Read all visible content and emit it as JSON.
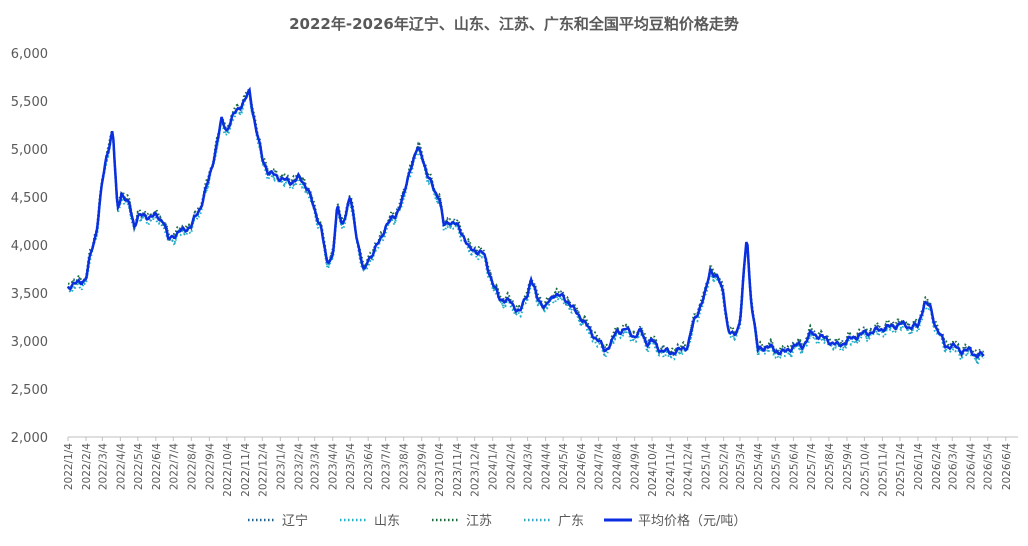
{
  "chart_data": {
    "type": "line",
    "title": "2022年-2026年辽宁、山东、江苏、广东和全国平均豆粕价格走势",
    "xlabel": "",
    "ylabel": "",
    "ylim": [
      2000,
      6000
    ],
    "y_ticks": [
      2000,
      2500,
      3000,
      3500,
      4000,
      4500,
      5000,
      5500,
      6000
    ],
    "y_tick_labels": [
      "2,000",
      "2,500",
      "3,000",
      "3,500",
      "4,000",
      "4,500",
      "5,000",
      "5,500",
      "6,000"
    ],
    "x_tick_labels": [
      "2022/1/4",
      "2022/2/4",
      "2022/3/4",
      "2022/4/4",
      "2022/5/4",
      "2022/6/4",
      "2022/7/4",
      "2022/8/4",
      "2022/9/4",
      "2022/10/4",
      "2022/11/4",
      "2022/12/4",
      "2023/1/4",
      "2023/2/4",
      "2023/3/4",
      "2023/4/4",
      "2023/5/4",
      "2023/6/4",
      "2023/7/4",
      "2023/8/4",
      "2023/9/4",
      "2023/10/4",
      "2023/11/4",
      "2023/12/4",
      "2024/1/4",
      "2024/2/4",
      "2024/3/4",
      "2024/4/4",
      "2024/5/4",
      "2024/6/4",
      "2024/7/4",
      "2024/8/4",
      "2024/9/4",
      "2024/10/4",
      "2024/11/4",
      "2024/12/4",
      "2025/1/4",
      "2025/2/4",
      "2025/3/4",
      "2025/4/4",
      "2025/5/4",
      "2025/6/4",
      "2025/7/4",
      "2025/8/4",
      "2025/9/4",
      "2025/10/4",
      "2025/11/4",
      "2025/12/4",
      "2026/1/4",
      "2026/2/4",
      "2026/3/4",
      "2026/4/4",
      "2026/5/4",
      "2026/6/4"
    ],
    "grid": false,
    "legend_position": "bottom",
    "series": [
      {
        "name": "辽宁",
        "color": "#1f5f8b",
        "style": "dotted",
        "offset": 10
      },
      {
        "name": "山东",
        "color": "#1ab0c8",
        "style": "dotted",
        "offset": -35
      },
      {
        "name": "江苏",
        "color": "#1a6b3c",
        "style": "dotted",
        "offset": 25
      },
      {
        "name": "广东",
        "color": "#2aa3c2",
        "style": "dotted",
        "offset": -20
      },
      {
        "name": "平均价格（元/吨）",
        "color": "#0a2ee0",
        "style": "solid",
        "offset": 0
      }
    ],
    "average_anchors": [
      [
        "2022-01-04",
        3570
      ],
      [
        "2022-01-20",
        3600
      ],
      [
        "2022-02-04",
        3650
      ],
      [
        "2022-02-12",
        3900
      ],
      [
        "2022-02-22",
        4150
      ],
      [
        "2022-03-04",
        4650
      ],
      [
        "2022-03-12",
        4950
      ],
      [
        "2022-03-22",
        5200
      ],
      [
        "2022-03-30",
        4350
      ],
      [
        "2022-04-06",
        4550
      ],
      [
        "2022-04-20",
        4400
      ],
      [
        "2022-04-28",
        4200
      ],
      [
        "2022-05-04",
        4300
      ],
      [
        "2022-05-20",
        4300
      ],
      [
        "2022-06-04",
        4300
      ],
      [
        "2022-06-18",
        4250
      ],
      [
        "2022-06-25",
        4050
      ],
      [
        "2022-07-04",
        4100
      ],
      [
        "2022-07-20",
        4150
      ],
      [
        "2022-08-04",
        4200
      ],
      [
        "2022-08-20",
        4400
      ],
      [
        "2022-09-04",
        4700
      ],
      [
        "2022-09-15",
        5000
      ],
      [
        "2022-09-25",
        5300
      ],
      [
        "2022-10-04",
        5200
      ],
      [
        "2022-10-20",
        5400
      ],
      [
        "2022-11-04",
        5500
      ],
      [
        "2022-11-12",
        5600
      ],
      [
        "2022-11-22",
        5250
      ],
      [
        "2022-12-04",
        4900
      ],
      [
        "2022-12-15",
        4750
      ],
      [
        "2023-01-04",
        4700
      ],
      [
        "2023-01-20",
        4650
      ],
      [
        "2023-02-04",
        4700
      ],
      [
        "2023-02-20",
        4600
      ],
      [
        "2023-03-04",
        4350
      ],
      [
        "2023-03-15",
        4200
      ],
      [
        "2023-03-25",
        3800
      ],
      [
        "2023-04-04",
        3900
      ],
      [
        "2023-04-12",
        4400
      ],
      [
        "2023-04-20",
        4200
      ],
      [
        "2023-05-04",
        4500
      ],
      [
        "2023-05-12",
        4200
      ],
      [
        "2023-05-20",
        3950
      ],
      [
        "2023-05-28",
        3700
      ],
      [
        "2023-06-04",
        3850
      ],
      [
        "2023-06-15",
        3950
      ],
      [
        "2023-06-25",
        4050
      ],
      [
        "2023-07-04",
        4200
      ],
      [
        "2023-07-20",
        4300
      ],
      [
        "2023-08-04",
        4500
      ],
      [
        "2023-08-15",
        4800
      ],
      [
        "2023-08-28",
        5000
      ],
      [
        "2023-09-04",
        4950
      ],
      [
        "2023-09-15",
        4700
      ],
      [
        "2023-09-28",
        4550
      ],
      [
        "2023-10-04",
        4500
      ],
      [
        "2023-10-12",
        4200
      ],
      [
        "2023-10-22",
        4250
      ],
      [
        "2023-11-04",
        4200
      ],
      [
        "2023-11-15",
        4100
      ],
      [
        "2023-11-25",
        3950
      ],
      [
        "2023-12-04",
        3950
      ],
      [
        "2023-12-20",
        3900
      ],
      [
        "2024-01-04",
        3600
      ],
      [
        "2024-01-15",
        3450
      ],
      [
        "2024-02-04",
        3400
      ],
      [
        "2024-02-20",
        3300
      ],
      [
        "2024-03-04",
        3500
      ],
      [
        "2024-03-10",
        3650
      ],
      [
        "2024-03-20",
        3450
      ],
      [
        "2024-04-04",
        3350
      ],
      [
        "2024-04-20",
        3500
      ],
      [
        "2024-05-04",
        3450
      ],
      [
        "2024-05-15",
        3400
      ],
      [
        "2024-05-25",
        3300
      ],
      [
        "2024-06-04",
        3250
      ],
      [
        "2024-06-20",
        3100
      ],
      [
        "2024-07-04",
        3000
      ],
      [
        "2024-07-15",
        2900
      ],
      [
        "2024-07-28",
        3000
      ],
      [
        "2024-08-04",
        3100
      ],
      [
        "2024-08-20",
        3120
      ],
      [
        "2024-09-04",
        3050
      ],
      [
        "2024-09-15",
        3100
      ],
      [
        "2024-09-25",
        2980
      ],
      [
        "2024-10-04",
        3000
      ],
      [
        "2024-10-20",
        2900
      ],
      [
        "2024-11-04",
        2880
      ],
      [
        "2024-11-20",
        2900
      ],
      [
        "2024-12-04",
        2950
      ],
      [
        "2024-12-15",
        3200
      ],
      [
        "2024-12-28",
        3400
      ],
      [
        "2025-01-04",
        3500
      ],
      [
        "2025-01-12",
        3750
      ],
      [
        "2025-01-25",
        3650
      ],
      [
        "2025-02-04",
        3500
      ],
      [
        "2025-02-12",
        3100
      ],
      [
        "2025-02-22",
        3050
      ],
      [
        "2025-03-04",
        3200
      ],
      [
        "2025-03-12",
        3800
      ],
      [
        "2025-03-16",
        4100
      ],
      [
        "2025-03-22",
        3500
      ],
      [
        "2025-04-04",
        2900
      ],
      [
        "2025-04-20",
        2950
      ],
      [
        "2025-05-04",
        2900
      ],
      [
        "2025-05-20",
        2880
      ],
      [
        "2025-06-04",
        2950
      ],
      [
        "2025-06-20",
        2950
      ],
      [
        "2025-07-04",
        3080
      ],
      [
        "2025-07-20",
        3050
      ],
      [
        "2025-08-04",
        3000
      ],
      [
        "2025-08-20",
        2950
      ],
      [
        "2025-09-04",
        3000
      ],
      [
        "2025-09-20",
        3050
      ],
      [
        "2025-10-04",
        3080
      ],
      [
        "2025-10-20",
        3100
      ],
      [
        "2025-11-04",
        3130
      ],
      [
        "2025-11-20",
        3150
      ],
      [
        "2025-12-04",
        3180
      ],
      [
        "2025-12-20",
        3150
      ],
      [
        "2026-01-04",
        3150
      ],
      [
        "2026-01-15",
        3400
      ],
      [
        "2026-01-25",
        3350
      ],
      [
        "2026-02-04",
        3150
      ],
      [
        "2026-02-20",
        2950
      ],
      [
        "2026-03-04",
        2950
      ],
      [
        "2026-03-20",
        2900
      ],
      [
        "2026-04-04",
        2900
      ],
      [
        "2026-04-15",
        2850
      ],
      [
        "2026-04-28",
        2850
      ]
    ]
  }
}
